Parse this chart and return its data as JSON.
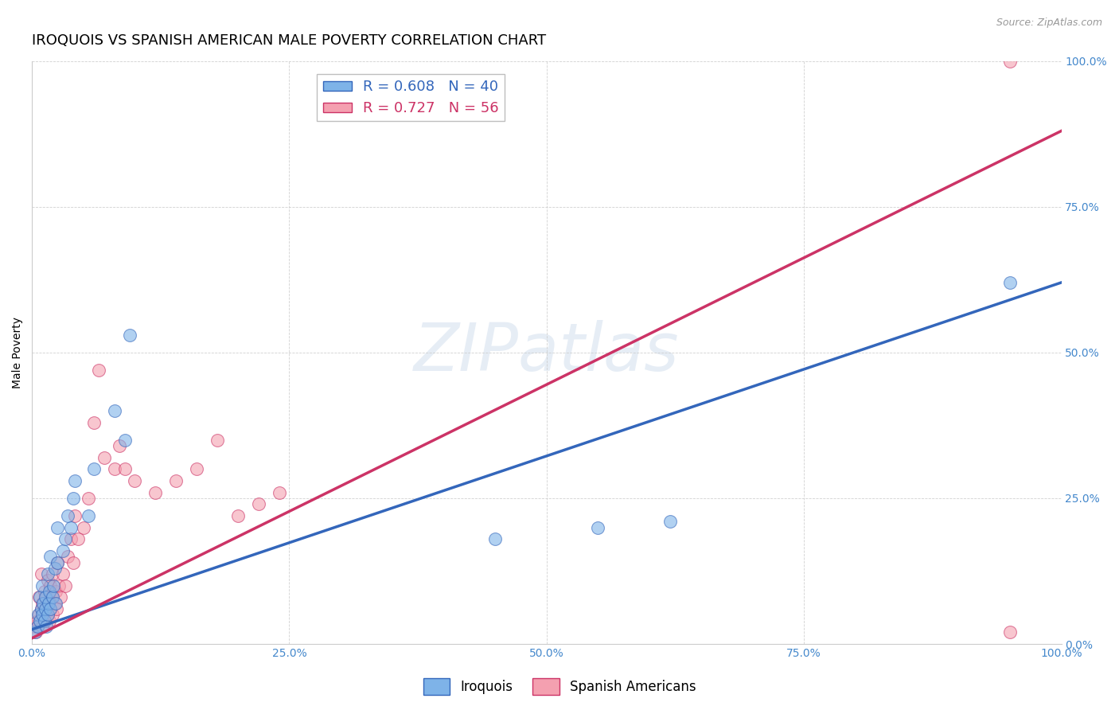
{
  "title": "IROQUOIS VS SPANISH AMERICAN MALE POVERTY CORRELATION CHART",
  "source": "Source: ZipAtlas.com",
  "ylabel": "Male Poverty",
  "watermark": "ZIPatlas",
  "xlim": [
    0,
    1
  ],
  "ylim": [
    0,
    1
  ],
  "xticks": [
    0,
    0.25,
    0.5,
    0.75,
    1.0
  ],
  "yticks": [
    0,
    0.25,
    0.5,
    0.75,
    1.0
  ],
  "xticklabels": [
    "0.0%",
    "25.0%",
    "50.0%",
    "75.0%",
    "100.0%"
  ],
  "yticklabels": [
    "0.0%",
    "25.0%",
    "50.0%",
    "75.0%",
    "100.0%"
  ],
  "iroquois_color": "#7EB3E8",
  "spanish_color": "#F4A0B0",
  "iroquois_line_color": "#3366BB",
  "spanish_line_color": "#CC3366",
  "legend_R_iroquois": "0.608",
  "legend_N_iroquois": "40",
  "legend_R_spanish": "0.727",
  "legend_N_spanish": "56",
  "iroquois_line_x0": 0.0,
  "iroquois_line_y0": 0.025,
  "iroquois_line_x1": 1.0,
  "iroquois_line_y1": 0.62,
  "spanish_line_x0": 0.0,
  "spanish_line_y0": 0.01,
  "spanish_line_x1": 1.0,
  "spanish_line_y1": 0.88,
  "iroquois_x": [
    0.003,
    0.005,
    0.006,
    0.008,
    0.008,
    0.009,
    0.01,
    0.01,
    0.011,
    0.012,
    0.013,
    0.013,
    0.014,
    0.015,
    0.015,
    0.016,
    0.017,
    0.018,
    0.018,
    0.02,
    0.021,
    0.022,
    0.023,
    0.025,
    0.025,
    0.03,
    0.032,
    0.035,
    0.038,
    0.04,
    0.042,
    0.055,
    0.06,
    0.08,
    0.09,
    0.095,
    0.45,
    0.55,
    0.62,
    0.95
  ],
  "iroquois_y": [
    0.02,
    0.03,
    0.05,
    0.04,
    0.08,
    0.06,
    0.05,
    0.1,
    0.07,
    0.04,
    0.06,
    0.08,
    0.03,
    0.05,
    0.12,
    0.07,
    0.09,
    0.06,
    0.15,
    0.08,
    0.1,
    0.13,
    0.07,
    0.14,
    0.2,
    0.16,
    0.18,
    0.22,
    0.2,
    0.25,
    0.28,
    0.22,
    0.3,
    0.4,
    0.35,
    0.53,
    0.18,
    0.2,
    0.21,
    0.62
  ],
  "spanish_x": [
    0.002,
    0.004,
    0.005,
    0.006,
    0.007,
    0.007,
    0.008,
    0.009,
    0.009,
    0.01,
    0.01,
    0.011,
    0.012,
    0.012,
    0.013,
    0.014,
    0.015,
    0.015,
    0.016,
    0.017,
    0.018,
    0.018,
    0.019,
    0.02,
    0.02,
    0.022,
    0.023,
    0.024,
    0.025,
    0.026,
    0.028,
    0.03,
    0.032,
    0.035,
    0.038,
    0.04,
    0.042,
    0.045,
    0.05,
    0.055,
    0.06,
    0.065,
    0.07,
    0.08,
    0.085,
    0.09,
    0.1,
    0.12,
    0.14,
    0.16,
    0.18,
    0.2,
    0.22,
    0.24,
    0.95,
    0.95
  ],
  "spanish_y": [
    0.03,
    0.02,
    0.04,
    0.03,
    0.05,
    0.08,
    0.04,
    0.06,
    0.12,
    0.03,
    0.07,
    0.05,
    0.04,
    0.09,
    0.06,
    0.08,
    0.05,
    0.11,
    0.07,
    0.04,
    0.06,
    0.1,
    0.08,
    0.05,
    0.12,
    0.07,
    0.09,
    0.06,
    0.14,
    0.1,
    0.08,
    0.12,
    0.1,
    0.15,
    0.18,
    0.14,
    0.22,
    0.18,
    0.2,
    0.25,
    0.38,
    0.47,
    0.32,
    0.3,
    0.34,
    0.3,
    0.28,
    0.26,
    0.28,
    0.3,
    0.35,
    0.22,
    0.24,
    0.26,
    1.0,
    0.02
  ],
  "background_color": "#FFFFFF",
  "grid_color": "#CCCCCC",
  "axis_label_color": "#4488CC",
  "title_fontsize": 13,
  "label_fontsize": 10,
  "tick_fontsize": 10,
  "source_fontsize": 9
}
